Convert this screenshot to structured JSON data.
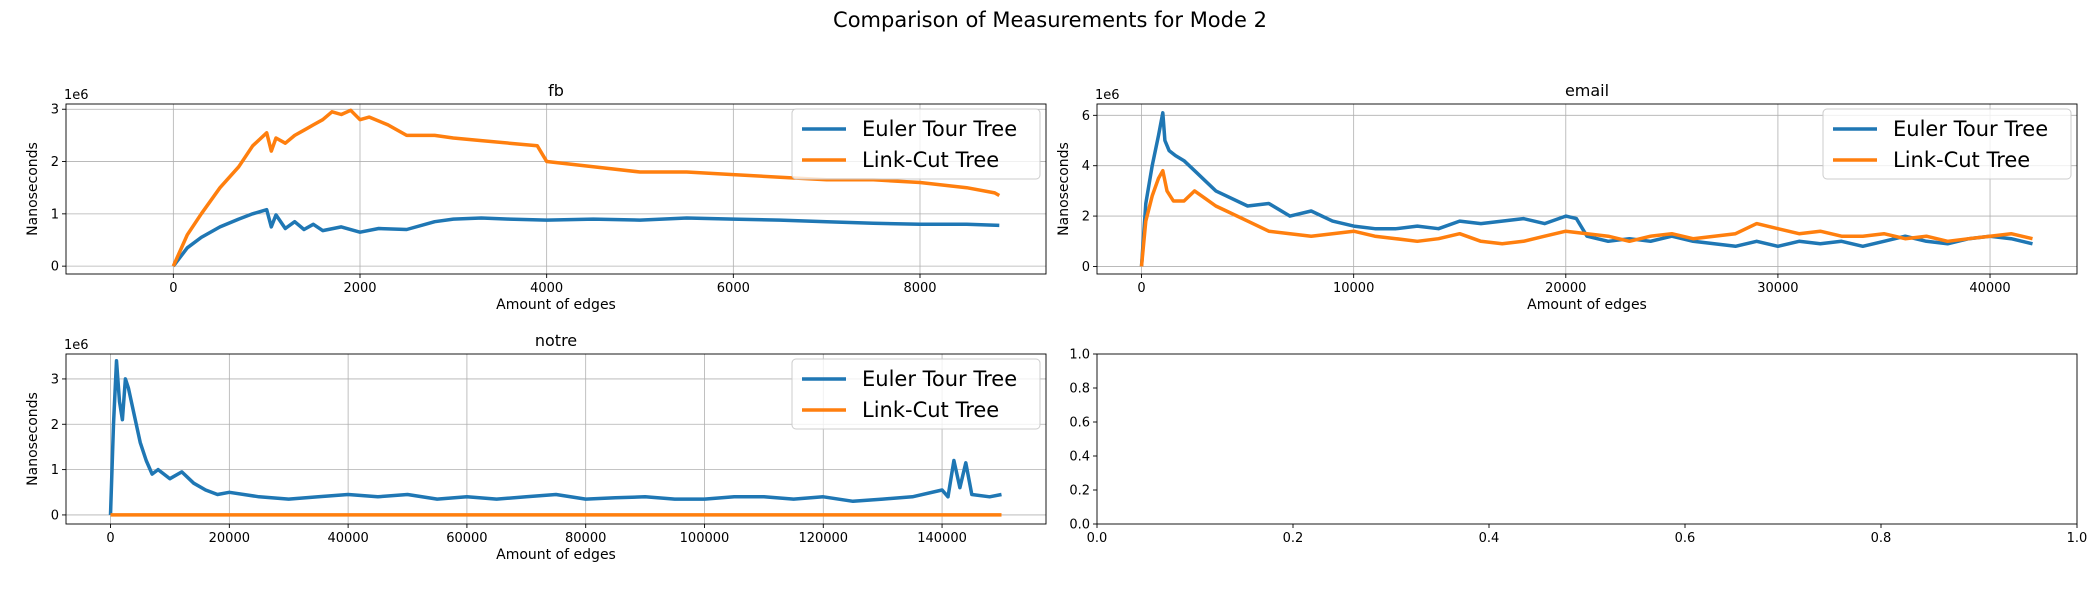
{
  "figure": {
    "title": "Comparison of Measurements for Mode 2"
  },
  "chart_data": [
    {
      "type": "line",
      "title": "fb",
      "xlabel": "Amount of edges",
      "ylabel": "Nanoseconds",
      "y_offset_label": "1e6",
      "xlim": [
        -1150,
        9350
      ],
      "ylim": [
        -0.15,
        3.1
      ],
      "xticks": [
        0,
        2000,
        4000,
        6000,
        8000
      ],
      "yticks": [
        0,
        1,
        2,
        3
      ],
      "grid": true,
      "legend_position": "upper right",
      "series": [
        {
          "name": "Euler Tour Tree",
          "color": "#1f77b4",
          "x": [
            0,
            150,
            300,
            500,
            700,
            850,
            1000,
            1050,
            1100,
            1200,
            1300,
            1400,
            1500,
            1600,
            1800,
            2000,
            2200,
            2500,
            2800,
            3000,
            3300,
            3600,
            4000,
            4500,
            5000,
            5500,
            6000,
            6500,
            7000,
            7500,
            8000,
            8500,
            8850
          ],
          "y": [
            0,
            0.35,
            0.55,
            0.75,
            0.9,
            1.0,
            1.08,
            0.75,
            0.98,
            0.72,
            0.85,
            0.7,
            0.8,
            0.68,
            0.75,
            0.65,
            0.72,
            0.7,
            0.85,
            0.9,
            0.92,
            0.9,
            0.88,
            0.9,
            0.88,
            0.92,
            0.9,
            0.88,
            0.85,
            0.82,
            0.8,
            0.8,
            0.78
          ]
        },
        {
          "name": "Link-Cut Tree",
          "color": "#ff7f0e",
          "x": [
            0,
            150,
            300,
            500,
            700,
            850,
            1000,
            1050,
            1100,
            1200,
            1300,
            1400,
            1500,
            1600,
            1700,
            1800,
            1900,
            2000,
            2100,
            2300,
            2500,
            2800,
            3000,
            3300,
            3600,
            3900,
            4000,
            4500,
            5000,
            5500,
            6000,
            6500,
            7000,
            7500,
            8000,
            8500,
            8800,
            8850
          ],
          "y": [
            0,
            0.6,
            1.0,
            1.5,
            1.9,
            2.3,
            2.55,
            2.2,
            2.45,
            2.35,
            2.5,
            2.6,
            2.7,
            2.8,
            2.95,
            2.9,
            2.98,
            2.8,
            2.85,
            2.7,
            2.5,
            2.5,
            2.45,
            2.4,
            2.35,
            2.3,
            2.0,
            1.9,
            1.8,
            1.8,
            1.75,
            1.7,
            1.65,
            1.65,
            1.6,
            1.5,
            1.4,
            1.35
          ]
        }
      ]
    },
    {
      "type": "line",
      "title": "email",
      "xlabel": "Amount of edges",
      "ylabel": "Nanoseconds",
      "y_offset_label": "1e6",
      "xlim": [
        -2100,
        44100
      ],
      "ylim": [
        -0.3,
        6.45
      ],
      "xticks": [
        0,
        10000,
        20000,
        30000,
        40000
      ],
      "yticks": [
        0,
        2,
        4,
        6
      ],
      "grid": true,
      "legend_position": "upper right",
      "series": [
        {
          "name": "Euler Tour Tree",
          "color": "#1f77b4",
          "x": [
            0,
            200,
            500,
            800,
            1000,
            1100,
            1300,
            1600,
            2000,
            2500,
            3000,
            3500,
            4000,
            5000,
            6000,
            7000,
            8000,
            9000,
            10000,
            11000,
            12000,
            13000,
            14000,
            15000,
            16000,
            17000,
            18000,
            19000,
            20000,
            20500,
            21000,
            22000,
            23000,
            24000,
            25000,
            26000,
            27000,
            28000,
            29000,
            30000,
            31000,
            32000,
            33000,
            34000,
            35000,
            36000,
            37000,
            38000,
            39000,
            40000,
            41000,
            42000
          ],
          "y": [
            0,
            2.5,
            4.0,
            5.2,
            6.1,
            5.0,
            4.6,
            4.4,
            4.2,
            3.8,
            3.4,
            3.0,
            2.8,
            2.4,
            2.5,
            2.0,
            2.2,
            1.8,
            1.6,
            1.5,
            1.5,
            1.6,
            1.5,
            1.8,
            1.7,
            1.8,
            1.9,
            1.7,
            2.0,
            1.9,
            1.2,
            1.0,
            1.1,
            1.0,
            1.2,
            1.0,
            0.9,
            0.8,
            1.0,
            0.8,
            1.0,
            0.9,
            1.0,
            0.8,
            1.0,
            1.2,
            1.0,
            0.9,
            1.1,
            1.2,
            1.1,
            0.9
          ]
        },
        {
          "name": "Link-Cut Tree",
          "color": "#ff7f0e",
          "x": [
            0,
            200,
            500,
            800,
            1000,
            1200,
            1500,
            2000,
            2500,
            3000,
            3500,
            4000,
            5000,
            6000,
            7000,
            8000,
            9000,
            10000,
            11000,
            12000,
            13000,
            14000,
            15000,
            16000,
            17000,
            18000,
            19000,
            20000,
            21000,
            22000,
            23000,
            24000,
            25000,
            26000,
            27000,
            28000,
            29000,
            30000,
            31000,
            32000,
            33000,
            34000,
            35000,
            36000,
            37000,
            38000,
            39000,
            40000,
            41000,
            42000
          ],
          "y": [
            0,
            1.8,
            2.8,
            3.5,
            3.8,
            3.0,
            2.6,
            2.6,
            3.0,
            2.7,
            2.4,
            2.2,
            1.8,
            1.4,
            1.3,
            1.2,
            1.3,
            1.4,
            1.2,
            1.1,
            1.0,
            1.1,
            1.3,
            1.0,
            0.9,
            1.0,
            1.2,
            1.4,
            1.3,
            1.2,
            1.0,
            1.2,
            1.3,
            1.1,
            1.2,
            1.3,
            1.7,
            1.5,
            1.3,
            1.4,
            1.2,
            1.2,
            1.3,
            1.1,
            1.2,
            1.0,
            1.1,
            1.2,
            1.3,
            1.1
          ]
        }
      ]
    },
    {
      "type": "line",
      "title": "notre",
      "xlabel": "Amount of edges",
      "ylabel": "Nanoseconds",
      "y_offset_label": "1e6",
      "xlim": [
        -7500,
        157500
      ],
      "ylim": [
        -0.2,
        3.55
      ],
      "xticks": [
        0,
        20000,
        40000,
        60000,
        80000,
        100000,
        120000,
        140000
      ],
      "yticks": [
        0,
        1,
        2,
        3
      ],
      "grid": true,
      "legend_position": "upper right",
      "series": [
        {
          "name": "Euler Tour Tree",
          "color": "#1f77b4",
          "x": [
            0,
            500,
            1000,
            1500,
            2000,
            2500,
            3000,
            4000,
            5000,
            6000,
            7000,
            8000,
            10000,
            12000,
            14000,
            16000,
            18000,
            20000,
            25000,
            30000,
            35000,
            40000,
            45000,
            50000,
            55000,
            60000,
            65000,
            70000,
            75000,
            80000,
            85000,
            90000,
            95000,
            100000,
            105000,
            110000,
            115000,
            120000,
            125000,
            130000,
            135000,
            140000,
            141000,
            142000,
            143000,
            144000,
            145000,
            148000,
            150000
          ],
          "y": [
            0,
            2.0,
            3.4,
            2.5,
            2.1,
            3.0,
            2.8,
            2.2,
            1.6,
            1.2,
            0.9,
            1.0,
            0.8,
            0.95,
            0.7,
            0.55,
            0.45,
            0.5,
            0.4,
            0.35,
            0.4,
            0.45,
            0.4,
            0.45,
            0.35,
            0.4,
            0.35,
            0.4,
            0.45,
            0.35,
            0.38,
            0.4,
            0.35,
            0.35,
            0.4,
            0.4,
            0.35,
            0.4,
            0.3,
            0.35,
            0.4,
            0.55,
            0.4,
            1.2,
            0.6,
            1.15,
            0.45,
            0.4,
            0.45
          ]
        },
        {
          "name": "Link-Cut Tree",
          "color": "#ff7f0e",
          "x": [
            0,
            150000
          ],
          "y": [
            0,
            0
          ]
        }
      ]
    },
    {
      "type": "line",
      "title": "",
      "xlabel": "",
      "ylabel": "",
      "xlim": [
        0,
        1
      ],
      "ylim": [
        0,
        1
      ],
      "xticks": [
        0,
        0.2,
        0.4,
        0.6,
        0.8,
        1.0
      ],
      "yticks": [
        0,
        0.2,
        0.4,
        0.6,
        0.8,
        1.0
      ],
      "xtick_labels": [
        "0.0",
        "0.2",
        "0.4",
        "0.6",
        "0.8",
        "1.0"
      ],
      "ytick_labels": [
        "0.0",
        "0.2",
        "0.4",
        "0.6",
        "0.8",
        "1.0"
      ],
      "grid": false,
      "series": []
    }
  ]
}
